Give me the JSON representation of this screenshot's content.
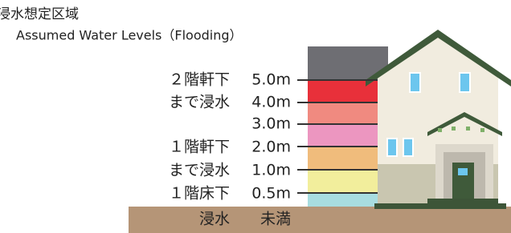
{
  "header": {
    "title": "浸水想定区域",
    "subtitle": "Assumed Water Levels（Flooding）"
  },
  "levels": [
    {
      "desc": "２階軒下",
      "height": "5.0m"
    },
    {
      "desc": "まで浸水",
      "height": "4.0m"
    },
    {
      "desc": null,
      "height": "3.0m"
    },
    {
      "desc": "１階軒下",
      "height": "2.0m"
    },
    {
      "desc": "まで浸水",
      "height": "1.0m"
    },
    {
      "desc": "１階床下",
      "height": "0.5m"
    }
  ],
  "ground": {
    "desc": "浸水",
    "height": "未満"
  }
}
